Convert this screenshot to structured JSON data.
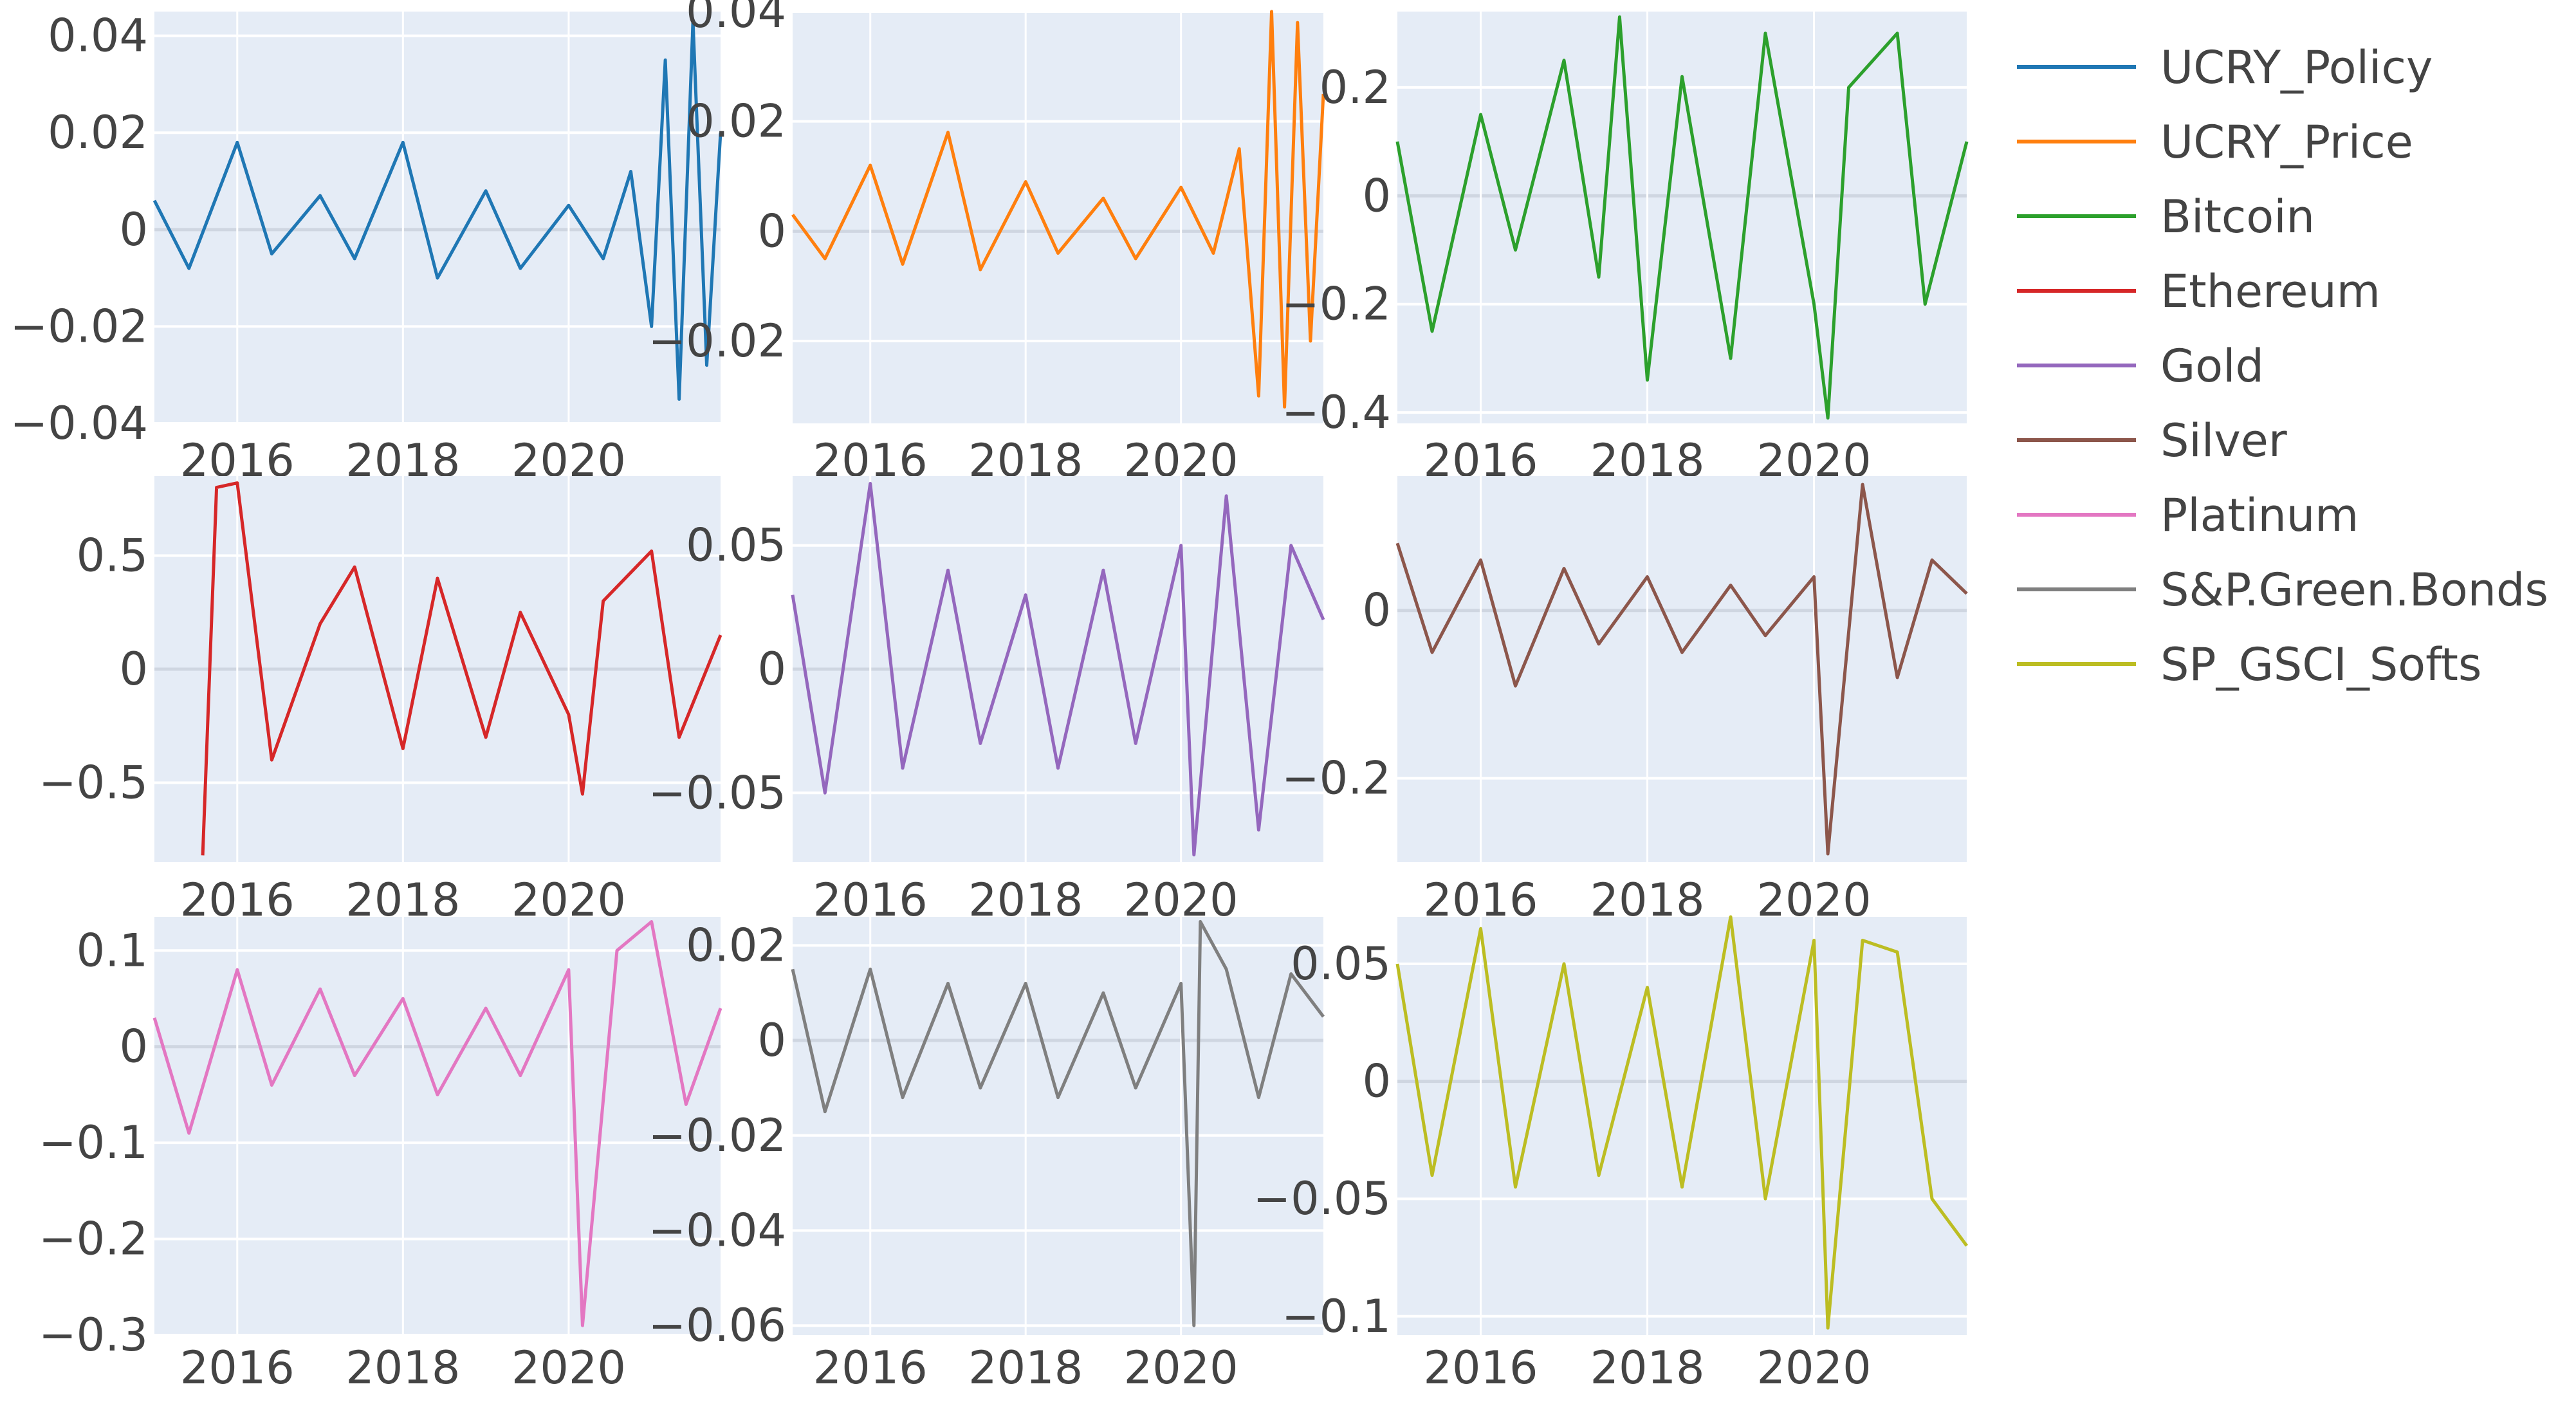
{
  "chart_data": {
    "type": "line",
    "layout_grid": "3x3 small multiples",
    "grid": true,
    "legend_position": "right",
    "x_ticks": [
      "2016",
      "2018",
      "2020"
    ],
    "x_range": [
      "2015-01",
      "2021-11"
    ],
    "series": [
      {
        "name": "UCRY_Policy",
        "color": "#1f77b4",
        "ylim": [
          -0.04,
          0.045
        ],
        "y_ticks": [
          0.04,
          0.02,
          0,
          -0.02,
          -0.04
        ],
        "y_tick_labels": [
          "0.04",
          "0.02",
          "0",
          "−0.02",
          "−0.04"
        ],
        "x": [
          "2015-01",
          "2015-06",
          "2016-01",
          "2016-06",
          "2017-01",
          "2017-06",
          "2018-01",
          "2018-06",
          "2019-01",
          "2019-06",
          "2020-01",
          "2020-06",
          "2020-10",
          "2021-01",
          "2021-03",
          "2021-05",
          "2021-07",
          "2021-09",
          "2021-11"
        ],
        "values": [
          0.006,
          -0.008,
          0.018,
          -0.005,
          0.007,
          -0.006,
          0.018,
          -0.01,
          0.008,
          -0.008,
          0.005,
          -0.006,
          0.012,
          -0.02,
          0.035,
          -0.035,
          0.043,
          -0.028,
          0.02
        ]
      },
      {
        "name": "UCRY_Price",
        "color": "#ff7f0e",
        "ylim": [
          -0.035,
          0.04
        ],
        "y_ticks": [
          0.04,
          0.02,
          0,
          -0.02
        ],
        "y_tick_labels": [
          "0.04",
          "0.02",
          "0",
          "−0.02"
        ],
        "x": [
          "2015-01",
          "2015-06",
          "2016-01",
          "2016-06",
          "2017-01",
          "2017-06",
          "2018-01",
          "2018-06",
          "2019-01",
          "2019-06",
          "2020-01",
          "2020-06",
          "2020-10",
          "2021-01",
          "2021-03",
          "2021-05",
          "2021-07",
          "2021-09",
          "2021-11"
        ],
        "values": [
          0.003,
          -0.005,
          0.012,
          -0.006,
          0.018,
          -0.007,
          0.009,
          -0.004,
          0.006,
          -0.005,
          0.008,
          -0.004,
          0.015,
          -0.03,
          0.04,
          -0.032,
          0.038,
          -0.02,
          0.025
        ]
      },
      {
        "name": "Bitcoin",
        "color": "#2ca02c",
        "ylim": [
          -0.42,
          0.34
        ],
        "y_ticks": [
          0.2,
          0,
          -0.2,
          -0.4
        ],
        "y_tick_labels": [
          "0.2",
          "0",
          "−0.2",
          "−0.4"
        ],
        "x": [
          "2015-01",
          "2015-06",
          "2016-01",
          "2016-06",
          "2017-01",
          "2017-06",
          "2017-09",
          "2018-01",
          "2018-06",
          "2019-01",
          "2019-06",
          "2020-01",
          "2020-03",
          "2020-06",
          "2021-01",
          "2021-05",
          "2021-11"
        ],
        "values": [
          0.1,
          -0.25,
          0.15,
          -0.1,
          0.25,
          -0.15,
          0.33,
          -0.34,
          0.22,
          -0.3,
          0.3,
          -0.2,
          -0.41,
          0.2,
          0.3,
          -0.2,
          0.1
        ]
      },
      {
        "name": "Ethereum",
        "color": "#d62728",
        "ylim": [
          -0.85,
          0.85
        ],
        "y_ticks": [
          0.5,
          0,
          -0.5
        ],
        "y_tick_labels": [
          "0.5",
          "0",
          "−0.5"
        ],
        "x": [
          "2015-08",
          "2015-10",
          "2016-01",
          "2016-06",
          "2017-01",
          "2017-06",
          "2018-01",
          "2018-06",
          "2019-01",
          "2019-06",
          "2020-01",
          "2020-03",
          "2020-06",
          "2021-01",
          "2021-05",
          "2021-11"
        ],
        "values": [
          -0.82,
          0.8,
          0.82,
          -0.4,
          0.2,
          0.45,
          -0.35,
          0.4,
          -0.3,
          0.25,
          -0.2,
          -0.55,
          0.3,
          0.52,
          -0.3,
          0.15
        ]
      },
      {
        "name": "Gold",
        "color": "#9467bd",
        "ylim": [
          -0.078,
          0.078
        ],
        "y_ticks": [
          0.05,
          0,
          -0.05
        ],
        "y_tick_labels": [
          "0.05",
          "0",
          "−0.05"
        ],
        "x": [
          "2015-01",
          "2015-06",
          "2016-01",
          "2016-06",
          "2017-01",
          "2017-06",
          "2018-01",
          "2018-06",
          "2019-01",
          "2019-06",
          "2020-01",
          "2020-03",
          "2020-08",
          "2021-01",
          "2021-06",
          "2021-11"
        ],
        "values": [
          0.03,
          -0.05,
          0.075,
          -0.04,
          0.04,
          -0.03,
          0.03,
          -0.04,
          0.04,
          -0.03,
          0.05,
          -0.075,
          0.07,
          -0.065,
          0.05,
          0.02
        ]
      },
      {
        "name": "Silver",
        "color": "#8c564b",
        "ylim": [
          -0.3,
          0.16
        ],
        "y_ticks": [
          0,
          -0.2
        ],
        "y_tick_labels": [
          "0",
          "−0.2"
        ],
        "x": [
          "2015-01",
          "2015-06",
          "2016-01",
          "2016-06",
          "2017-01",
          "2017-06",
          "2018-01",
          "2018-06",
          "2019-01",
          "2019-06",
          "2020-01",
          "2020-03",
          "2020-08",
          "2021-01",
          "2021-06",
          "2021-11"
        ],
        "values": [
          0.08,
          -0.05,
          0.06,
          -0.09,
          0.05,
          -0.04,
          0.04,
          -0.05,
          0.03,
          -0.03,
          0.04,
          -0.29,
          0.15,
          -0.08,
          0.06,
          0.02
        ]
      },
      {
        "name": "Platinum",
        "color": "#e377c2",
        "ylim": [
          -0.3,
          0.135
        ],
        "y_ticks": [
          0.1,
          0,
          -0.1,
          -0.2,
          -0.3
        ],
        "y_tick_labels": [
          "0.1",
          "0",
          "−0.1",
          "−0.2",
          "−0.3"
        ],
        "x": [
          "2015-01",
          "2015-06",
          "2016-01",
          "2016-06",
          "2017-01",
          "2017-06",
          "2018-01",
          "2018-06",
          "2019-01",
          "2019-06",
          "2020-01",
          "2020-03",
          "2020-08",
          "2021-01",
          "2021-06",
          "2021-11"
        ],
        "values": [
          0.03,
          -0.09,
          0.08,
          -0.04,
          0.06,
          -0.03,
          0.05,
          -0.05,
          0.04,
          -0.03,
          0.08,
          -0.29,
          0.1,
          0.13,
          -0.06,
          0.04
        ]
      },
      {
        "name": "S&P.Green.Bonds",
        "color": "#7f7f7f",
        "ylim": [
          -0.062,
          0.026
        ],
        "y_ticks": [
          0.02,
          0,
          -0.02,
          -0.04,
          -0.06
        ],
        "y_tick_labels": [
          "0.02",
          "0",
          "−0.02",
          "−0.04",
          "−0.06"
        ],
        "x": [
          "2015-01",
          "2015-06",
          "2016-01",
          "2016-06",
          "2017-01",
          "2017-06",
          "2018-01",
          "2018-06",
          "2019-01",
          "2019-06",
          "2020-01",
          "2020-03",
          "2020-04",
          "2020-08",
          "2021-01",
          "2021-06",
          "2021-11"
        ],
        "values": [
          0.015,
          -0.015,
          0.015,
          -0.012,
          0.012,
          -0.01,
          0.012,
          -0.012,
          0.01,
          -0.01,
          0.012,
          -0.06,
          0.025,
          0.015,
          -0.012,
          0.014,
          0.005
        ]
      },
      {
        "name": "SP_GSCI_Softs",
        "color": "#bcbd22",
        "ylim": [
          -0.108,
          0.07
        ],
        "y_ticks": [
          0.05,
          0,
          -0.05,
          -0.1
        ],
        "y_tick_labels": [
          "0.05",
          "0",
          "−0.05",
          "−0.1"
        ],
        "x": [
          "2015-01",
          "2015-06",
          "2016-01",
          "2016-06",
          "2017-01",
          "2017-06",
          "2018-01",
          "2018-06",
          "2019-01",
          "2019-06",
          "2020-01",
          "2020-03",
          "2020-08",
          "2021-01",
          "2021-06",
          "2021-11"
        ],
        "values": [
          0.05,
          -0.04,
          0.065,
          -0.045,
          0.05,
          -0.04,
          0.04,
          -0.045,
          0.07,
          -0.05,
          0.06,
          -0.105,
          0.06,
          0.055,
          -0.05,
          -0.07
        ]
      }
    ]
  },
  "legend": {
    "items": [
      {
        "label": "UCRY_Policy",
        "color": "#1f77b4"
      },
      {
        "label": "UCRY_Price",
        "color": "#ff7f0e"
      },
      {
        "label": "Bitcoin",
        "color": "#2ca02c"
      },
      {
        "label": "Ethereum",
        "color": "#d62728"
      },
      {
        "label": "Gold",
        "color": "#9467bd"
      },
      {
        "label": "Silver",
        "color": "#8c564b"
      },
      {
        "label": "Platinum",
        "color": "#e377c2"
      },
      {
        "label": "S&P.Green.Bonds",
        "color": "#7f7f7f"
      },
      {
        "label": "SP_GSCI_Softs",
        "color": "#bcbd22"
      }
    ]
  },
  "colors": {
    "plot_background": "#e5ecf6",
    "gridline": "#ffffff",
    "zero_line": "#cfd6e1",
    "tick_text": "#444444"
  }
}
